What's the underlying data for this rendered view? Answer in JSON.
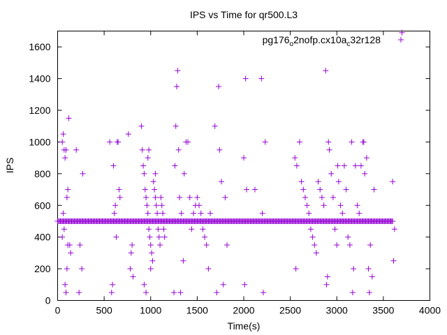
{
  "chart_data": {
    "type": "scatter",
    "title": "IPS vs Time for qr500.L3",
    "xlabel": "Time(s)",
    "ylabel": "IPS",
    "xlim": [
      0,
      4000
    ],
    "ylim": [
      0,
      1700
    ],
    "xticks": [
      0,
      500,
      1000,
      1500,
      2000,
      2500,
      3000,
      3500,
      4000
    ],
    "yticks": [
      0,
      200,
      400,
      600,
      800,
      1000,
      1200,
      1400,
      1600
    ],
    "grid": false,
    "legend_position": "top-right",
    "marker": "+",
    "color": "#9400d3",
    "series": [
      {
        "name_parts": [
          {
            "text": "pg176",
            "sub": false
          },
          {
            "text": "o",
            "sub": true
          },
          {
            "text": "2nofp.cx10a",
            "sub": false
          },
          {
            "text": "c",
            "sub": true
          },
          {
            "text": "32r128",
            "sub": false
          }
        ],
        "baseline": {
          "x_start": 0,
          "x_end": 3600,
          "y": 500,
          "step": 10
        },
        "points": [
          [
            50,
            1000
          ],
          [
            60,
            1050
          ],
          [
            70,
            950
          ],
          [
            80,
            900
          ],
          [
            90,
            950
          ],
          [
            100,
            650
          ],
          [
            110,
            700
          ],
          [
            120,
            1150
          ],
          [
            130,
            350
          ],
          [
            140,
            300
          ],
          [
            60,
            550
          ],
          [
            70,
            450
          ],
          [
            80,
            100
          ],
          [
            90,
            50
          ],
          [
            50,
            400
          ],
          [
            100,
            200
          ],
          [
            110,
            350
          ],
          [
            200,
            950
          ],
          [
            230,
            50
          ],
          [
            240,
            350
          ],
          [
            260,
            200
          ],
          [
            270,
            800
          ],
          [
            560,
            1000
          ],
          [
            580,
            50
          ],
          [
            590,
            100
          ],
          [
            600,
            850
          ],
          [
            610,
            550
          ],
          [
            620,
            600
          ],
          [
            630,
            400
          ],
          [
            640,
            1000
          ],
          [
            650,
            1000
          ],
          [
            660,
            700
          ],
          [
            670,
            650
          ],
          [
            760,
            1050
          ],
          [
            780,
            200
          ],
          [
            790,
            300
          ],
          [
            800,
            350
          ],
          [
            810,
            150
          ],
          [
            900,
            1100
          ],
          [
            910,
            950
          ],
          [
            920,
            850
          ],
          [
            930,
            800
          ],
          [
            940,
            700
          ],
          [
            950,
            650
          ],
          [
            960,
            600
          ],
          [
            970,
            550
          ],
          [
            980,
            450
          ],
          [
            990,
            400
          ],
          [
            1000,
            350
          ],
          [
            1010,
            300
          ],
          [
            1020,
            250
          ],
          [
            1030,
            750
          ],
          [
            1040,
            700
          ],
          [
            1050,
            650
          ],
          [
            1060,
            600
          ],
          [
            1070,
            550
          ],
          [
            1080,
            450
          ],
          [
            1090,
            400
          ],
          [
            1100,
            350
          ],
          [
            1110,
            650
          ],
          [
            1120,
            600
          ],
          [
            1130,
            550
          ],
          [
            1140,
            450
          ],
          [
            1150,
            400
          ],
          [
            930,
            100
          ],
          [
            950,
            50
          ],
          [
            970,
            900
          ],
          [
            980,
            950
          ],
          [
            1000,
            200
          ],
          [
            1050,
            800
          ],
          [
            1250,
            50
          ],
          [
            1260,
            850
          ],
          [
            1270,
            1100
          ],
          [
            1280,
            1350
          ],
          [
            1290,
            1450
          ],
          [
            1300,
            950
          ],
          [
            1310,
            650
          ],
          [
            1320,
            50
          ],
          [
            1330,
            550
          ],
          [
            1350,
            250
          ],
          [
            1360,
            800
          ],
          [
            1380,
            1000
          ],
          [
            1400,
            1000
          ],
          [
            1420,
            650
          ],
          [
            1440,
            450
          ],
          [
            1460,
            550
          ],
          [
            1480,
            600
          ],
          [
            1500,
            650
          ],
          [
            1520,
            600
          ],
          [
            1540,
            550
          ],
          [
            1560,
            450
          ],
          [
            1580,
            400
          ],
          [
            1600,
            350
          ],
          [
            1620,
            200
          ],
          [
            1640,
            550
          ],
          [
            1690,
            1100
          ],
          [
            1710,
            50
          ],
          [
            1730,
            1350
          ],
          [
            1740,
            950
          ],
          [
            1760,
            750
          ],
          [
            1780,
            100
          ],
          [
            1800,
            650
          ],
          [
            1820,
            350
          ],
          [
            2000,
            900
          ],
          [
            2010,
            100
          ],
          [
            2020,
            1400
          ],
          [
            2030,
            700
          ],
          [
            2120,
            700
          ],
          [
            2190,
            1400
          ],
          [
            2200,
            550
          ],
          [
            2210,
            50
          ],
          [
            2230,
            1000
          ],
          [
            2550,
            900
          ],
          [
            2560,
            200
          ],
          [
            2570,
            850
          ],
          [
            2600,
            1000
          ],
          [
            2620,
            750
          ],
          [
            2640,
            700
          ],
          [
            2660,
            650
          ],
          [
            2680,
            600
          ],
          [
            2700,
            550
          ],
          [
            2720,
            450
          ],
          [
            2740,
            400
          ],
          [
            2760,
            350
          ],
          [
            2780,
            300
          ],
          [
            2800,
            750
          ],
          [
            2820,
            700
          ],
          [
            2840,
            650
          ],
          [
            2860,
            600
          ],
          [
            2880,
            1450
          ],
          [
            2890,
            100
          ],
          [
            2900,
            150
          ],
          [
            2910,
            1000
          ],
          [
            2920,
            950
          ],
          [
            2940,
            800
          ],
          [
            2960,
            650
          ],
          [
            2980,
            450
          ],
          [
            3000,
            350
          ],
          [
            3010,
            850
          ],
          [
            3020,
            750
          ],
          [
            3040,
            600
          ],
          [
            3060,
            550
          ],
          [
            3080,
            850
          ],
          [
            3100,
            700
          ],
          [
            3120,
            400
          ],
          [
            3140,
            350
          ],
          [
            3160,
            1000
          ],
          [
            3170,
            50
          ],
          [
            3180,
            200
          ],
          [
            3200,
            850
          ],
          [
            3220,
            600
          ],
          [
            3240,
            550
          ],
          [
            3260,
            850
          ],
          [
            3280,
            1000
          ],
          [
            3290,
            1000
          ],
          [
            3300,
            800
          ],
          [
            3320,
            900
          ],
          [
            3340,
            200
          ],
          [
            3350,
            50
          ],
          [
            3360,
            350
          ],
          [
            3380,
            150
          ],
          [
            3400,
            700
          ],
          [
            3600,
            750
          ],
          [
            3610,
            250
          ],
          [
            3620,
            450
          ],
          [
            3700,
            1690
          ]
        ]
      }
    ]
  }
}
